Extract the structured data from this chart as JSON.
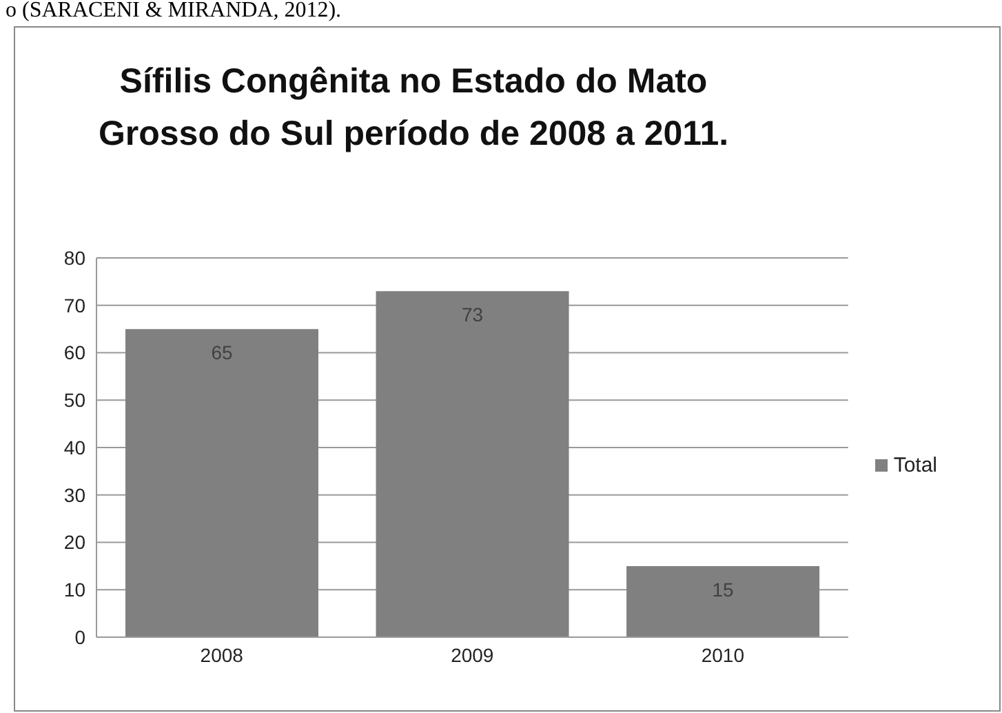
{
  "chart_data": {
    "type": "bar",
    "title": "Sífilis Congênita no Estado do Mato Grosso do Sul período de 2008 a 2011.",
    "annotations": [
      "o (SARACENI & MIRANDA, 2012)."
    ],
    "categories": [
      "2008",
      "2009",
      "2010"
    ],
    "series": [
      {
        "name": "Total",
        "color": "#808080",
        "values": [
          65,
          73,
          15
        ]
      }
    ],
    "ylim": [
      0,
      80
    ],
    "yticks": [
      0,
      10,
      20,
      30,
      40,
      50,
      60,
      70,
      80
    ],
    "grid": "y",
    "legend": "right",
    "data_labels": true
  }
}
